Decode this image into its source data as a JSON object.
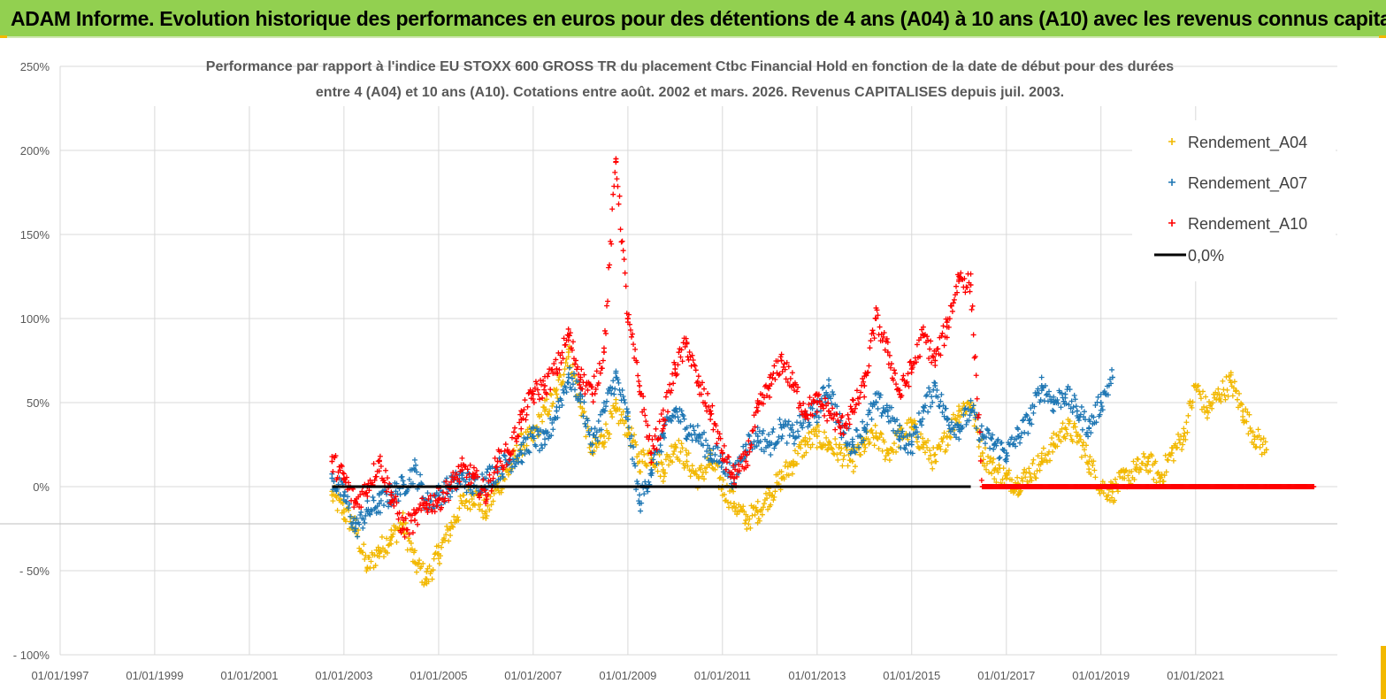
{
  "header": {
    "banner": "ADAM Informe. Evolution historique des performances en euros pour des détentions de 4 ans (A04) à 10 ans (A10) avec les revenus connus capitalisés",
    "banner_color": "#92d050"
  },
  "chart_data": {
    "type": "scatter",
    "title_line1": "Performance par rapport à l'indice EU STOXX 600 GROSS TR  du placement Ctbc Financial Hold  en fonction de la date de début pour des durées",
    "title_line2": "entre 4 (A04) et 10 ans (A10). Cotations entre août. 2002 et mars. 2026. Revenus CAPITALISES depuis juil. 2003.",
    "xlim": [
      "1997-01-01",
      "2023-12-31"
    ],
    "ylim": [
      -100,
      250
    ],
    "x_ticks": [
      "01/01/1997",
      "01/01/1999",
      "01/01/2001",
      "01/01/2003",
      "01/01/2005",
      "01/01/2007",
      "01/01/2009",
      "01/01/2011",
      "01/01/2013",
      "01/01/2015",
      "01/01/2017",
      "01/01/2019",
      "01/01/2021"
    ],
    "y_ticks": [
      {
        "value": 250,
        "label": "250%"
      },
      {
        "value": 200,
        "label": "200%"
      },
      {
        "value": 150,
        "label": "150%"
      },
      {
        "value": 100,
        "label": "100%"
      },
      {
        "value": 50,
        "label": "50%"
      },
      {
        "value": 0,
        "label": "0%"
      },
      {
        "value": -50,
        "label": "- 50%"
      },
      {
        "value": -100,
        "label": "- 100%"
      }
    ],
    "grid": true,
    "legend_position": "top-right",
    "series": [
      {
        "name": "Rendement_A04",
        "color": "#f2b800",
        "marker": "+",
        "points": [
          [
            "2002-10-01",
            -5
          ],
          [
            "2003-01-01",
            -15
          ],
          [
            "2003-04-01",
            -25
          ],
          [
            "2003-07-01",
            -48
          ],
          [
            "2003-10-01",
            -38
          ],
          [
            "2004-01-01",
            -30
          ],
          [
            "2004-04-01",
            -22
          ],
          [
            "2004-07-01",
            -45
          ],
          [
            "2004-10-01",
            -55
          ],
          [
            "2005-01-01",
            -40
          ],
          [
            "2005-04-01",
            -25
          ],
          [
            "2005-07-01",
            -10
          ],
          [
            "2005-10-01",
            -5
          ],
          [
            "2006-01-01",
            -15
          ],
          [
            "2006-04-01",
            0
          ],
          [
            "2006-07-01",
            10
          ],
          [
            "2006-10-01",
            25
          ],
          [
            "2007-01-01",
            30
          ],
          [
            "2007-04-01",
            45
          ],
          [
            "2007-07-01",
            55
          ],
          [
            "2007-10-01",
            80
          ],
          [
            "2008-01-01",
            50
          ],
          [
            "2008-04-01",
            20
          ],
          [
            "2008-07-01",
            30
          ],
          [
            "2008-10-01",
            45
          ],
          [
            "2009-01-01",
            35
          ],
          [
            "2009-04-01",
            15
          ],
          [
            "2009-07-01",
            20
          ],
          [
            "2009-10-01",
            10
          ],
          [
            "2010-01-01",
            25
          ],
          [
            "2010-04-01",
            15
          ],
          [
            "2010-07-01",
            5
          ],
          [
            "2010-10-01",
            15
          ],
          [
            "2011-01-01",
            0
          ],
          [
            "2011-04-01",
            -10
          ],
          [
            "2011-07-01",
            -20
          ],
          [
            "2011-10-01",
            -15
          ],
          [
            "2012-01-01",
            -5
          ],
          [
            "2012-04-01",
            5
          ],
          [
            "2012-07-01",
            15
          ],
          [
            "2012-10-01",
            25
          ],
          [
            "2013-01-01",
            30
          ],
          [
            "2013-04-01",
            25
          ],
          [
            "2013-07-01",
            20
          ],
          [
            "2013-10-01",
            15
          ],
          [
            "2014-01-01",
            25
          ],
          [
            "2014-04-01",
            30
          ],
          [
            "2014-07-01",
            20
          ],
          [
            "2014-10-01",
            30
          ],
          [
            "2015-01-01",
            35
          ],
          [
            "2015-04-01",
            25
          ],
          [
            "2015-07-01",
            15
          ],
          [
            "2015-10-01",
            30
          ],
          [
            "2016-01-01",
            45
          ],
          [
            "2016-04-01",
            50
          ],
          [
            "2016-07-01",
            20
          ],
          [
            "2016-10-01",
            10
          ],
          [
            "2017-01-01",
            5
          ],
          [
            "2017-04-01",
            2
          ],
          [
            "2017-07-01",
            8
          ],
          [
            "2017-10-01",
            15
          ],
          [
            "2018-01-01",
            25
          ],
          [
            "2018-04-01",
            35
          ],
          [
            "2018-07-01",
            30
          ],
          [
            "2018-10-01",
            15
          ],
          [
            "2019-01-01",
            0
          ],
          [
            "2019-04-01",
            -3
          ],
          [
            "2019-07-01",
            5
          ],
          [
            "2019-10-01",
            10
          ],
          [
            "2020-01-01",
            15
          ],
          [
            "2020-04-01",
            5
          ],
          [
            "2020-07-01",
            20
          ],
          [
            "2020-10-01",
            30
          ],
          [
            "2021-01-01",
            60
          ],
          [
            "2021-04-01",
            45
          ],
          [
            "2021-07-01",
            55
          ],
          [
            "2021-10-01",
            62
          ],
          [
            "2022-01-01",
            45
          ],
          [
            "2022-04-01",
            30
          ],
          [
            "2022-07-01",
            22
          ]
        ]
      },
      {
        "name": "Rendement_A07",
        "color": "#1f77b4",
        "marker": "+",
        "points": [
          [
            "2002-10-01",
            5
          ],
          [
            "2003-01-01",
            -5
          ],
          [
            "2003-04-01",
            -25
          ],
          [
            "2003-07-01",
            -15
          ],
          [
            "2003-10-01",
            -10
          ],
          [
            "2004-01-01",
            -5
          ],
          [
            "2004-04-01",
            0
          ],
          [
            "2004-07-01",
            10
          ],
          [
            "2004-10-01",
            -10
          ],
          [
            "2005-01-01",
            -5
          ],
          [
            "2005-04-01",
            0
          ],
          [
            "2005-07-01",
            5
          ],
          [
            "2005-10-01",
            0
          ],
          [
            "2006-01-01",
            5
          ],
          [
            "2006-04-01",
            10
          ],
          [
            "2006-07-01",
            15
          ],
          [
            "2006-10-01",
            20
          ],
          [
            "2007-01-01",
            30
          ],
          [
            "2007-04-01",
            25
          ],
          [
            "2007-07-01",
            45
          ],
          [
            "2007-10-01",
            65
          ],
          [
            "2008-01-01",
            55
          ],
          [
            "2008-04-01",
            25
          ],
          [
            "2008-07-01",
            45
          ],
          [
            "2008-10-01",
            65
          ],
          [
            "2009-01-01",
            40
          ],
          [
            "2009-04-01",
            -10
          ],
          [
            "2009-07-01",
            10
          ],
          [
            "2009-10-01",
            30
          ],
          [
            "2010-01-01",
            45
          ],
          [
            "2010-04-01",
            35
          ],
          [
            "2010-07-01",
            30
          ],
          [
            "2010-10-01",
            20
          ],
          [
            "2011-01-01",
            15
          ],
          [
            "2011-04-01",
            5
          ],
          [
            "2011-07-01",
            25
          ],
          [
            "2011-10-01",
            30
          ],
          [
            "2012-01-01",
            25
          ],
          [
            "2012-04-01",
            35
          ],
          [
            "2012-07-01",
            30
          ],
          [
            "2012-10-01",
            40
          ],
          [
            "2013-01-01",
            45
          ],
          [
            "2013-04-01",
            60
          ],
          [
            "2013-07-01",
            35
          ],
          [
            "2013-10-01",
            25
          ],
          [
            "2014-01-01",
            35
          ],
          [
            "2014-04-01",
            50
          ],
          [
            "2014-07-01",
            45
          ],
          [
            "2014-10-01",
            30
          ],
          [
            "2015-01-01",
            25
          ],
          [
            "2015-04-01",
            45
          ],
          [
            "2015-07-01",
            60
          ],
          [
            "2015-10-01",
            40
          ],
          [
            "2016-01-01",
            35
          ],
          [
            "2016-04-01",
            45
          ],
          [
            "2016-07-01",
            30
          ],
          [
            "2016-10-01",
            25
          ],
          [
            "2017-01-01",
            20
          ],
          [
            "2017-04-01",
            30
          ],
          [
            "2017-07-01",
            40
          ],
          [
            "2017-10-01",
            60
          ],
          [
            "2018-01-01",
            50
          ],
          [
            "2018-04-01",
            55
          ],
          [
            "2018-07-01",
            45
          ],
          [
            "2018-10-01",
            35
          ],
          [
            "2019-01-01",
            50
          ],
          [
            "2019-04-01",
            65
          ]
        ]
      },
      {
        "name": "Rendement_A10",
        "color": "#ff0000",
        "marker": "+",
        "points": [
          [
            "2002-10-01",
            15
          ],
          [
            "2003-01-01",
            5
          ],
          [
            "2003-04-01",
            -10
          ],
          [
            "2003-07-01",
            0
          ],
          [
            "2003-10-01",
            15
          ],
          [
            "2004-01-01",
            -5
          ],
          [
            "2004-04-01",
            -25
          ],
          [
            "2004-07-01",
            -20
          ],
          [
            "2004-10-01",
            -10
          ],
          [
            "2005-01-01",
            -8
          ],
          [
            "2005-04-01",
            0
          ],
          [
            "2005-07-01",
            10
          ],
          [
            "2005-10-01",
            5
          ],
          [
            "2006-01-01",
            -5
          ],
          [
            "2006-04-01",
            15
          ],
          [
            "2006-07-01",
            20
          ],
          [
            "2006-10-01",
            40
          ],
          [
            "2007-01-01",
            55
          ],
          [
            "2007-04-01",
            60
          ],
          [
            "2007-07-01",
            70
          ],
          [
            "2007-10-01",
            90
          ],
          [
            "2008-01-01",
            65
          ],
          [
            "2008-04-01",
            55
          ],
          [
            "2008-07-01",
            80
          ],
          [
            "2008-10-01",
            195
          ],
          [
            "2009-01-01",
            100
          ],
          [
            "2009-04-01",
            60
          ],
          [
            "2009-07-01",
            20
          ],
          [
            "2009-10-01",
            40
          ],
          [
            "2010-01-01",
            70
          ],
          [
            "2010-04-01",
            85
          ],
          [
            "2010-07-01",
            60
          ],
          [
            "2010-10-01",
            45
          ],
          [
            "2011-01-01",
            20
          ],
          [
            "2011-04-01",
            5
          ],
          [
            "2011-07-01",
            15
          ],
          [
            "2011-10-01",
            45
          ],
          [
            "2012-01-01",
            60
          ],
          [
            "2012-04-01",
            75
          ],
          [
            "2012-07-01",
            60
          ],
          [
            "2012-10-01",
            45
          ],
          [
            "2013-01-01",
            50
          ],
          [
            "2013-04-01",
            45
          ],
          [
            "2013-07-01",
            35
          ],
          [
            "2013-10-01",
            45
          ],
          [
            "2014-01-01",
            60
          ],
          [
            "2014-04-01",
            100
          ],
          [
            "2014-07-01",
            80
          ],
          [
            "2014-10-01",
            55
          ],
          [
            "2015-01-01",
            70
          ],
          [
            "2015-04-01",
            90
          ],
          [
            "2015-07-01",
            75
          ],
          [
            "2015-10-01",
            95
          ],
          [
            "2016-01-01",
            125
          ],
          [
            "2016-04-01",
            120
          ],
          [
            "2016-07-01",
            0
          ],
          [
            "2017-01-01",
            0
          ],
          [
            "2017-07-01",
            0
          ],
          [
            "2018-01-01",
            0
          ],
          [
            "2018-07-01",
            0
          ],
          [
            "2019-01-01",
            0
          ],
          [
            "2019-07-01",
            0
          ],
          [
            "2020-01-01",
            0
          ],
          [
            "2020-07-01",
            0
          ],
          [
            "2021-01-01",
            0
          ],
          [
            "2021-07-01",
            0
          ],
          [
            "2022-01-01",
            0
          ],
          [
            "2022-07-01",
            0
          ],
          [
            "2023-01-01",
            0
          ],
          [
            "2023-07-01",
            0
          ]
        ]
      }
    ],
    "reference_line": {
      "name": "0,0%",
      "value": 0,
      "color": "#000000",
      "from": "2002-10-01",
      "to": "2016-04-01"
    }
  }
}
